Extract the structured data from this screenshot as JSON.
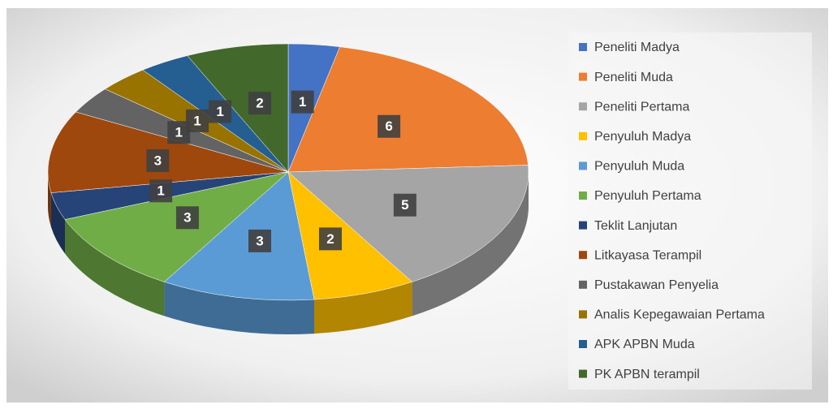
{
  "chart_data": {
    "type": "pie",
    "categories": [
      "Peneliti Madya",
      "Peneliti Muda",
      "Peneliti Pertama",
      "Penyuluh Madya",
      "Penyuluh Muda",
      "Penyuluh Pertama",
      "Teklit Lanjutan",
      "Litkayasa Terampil",
      "Pustakawan Penyelia",
      "Analis Kepegawaian Pertama",
      "APK APBN Muda",
      "PK APBN terampil"
    ],
    "values": [
      1,
      6,
      5,
      2,
      3,
      3,
      1,
      3,
      1,
      1,
      1,
      2
    ],
    "colors": [
      "#4472c4",
      "#ed7d31",
      "#a5a5a5",
      "#ffc000",
      "#5b9bd5",
      "#70ad47",
      "#264478",
      "#9e480e",
      "#636363",
      "#997300",
      "#255e91",
      "#43682b"
    ],
    "legend": "right"
  }
}
